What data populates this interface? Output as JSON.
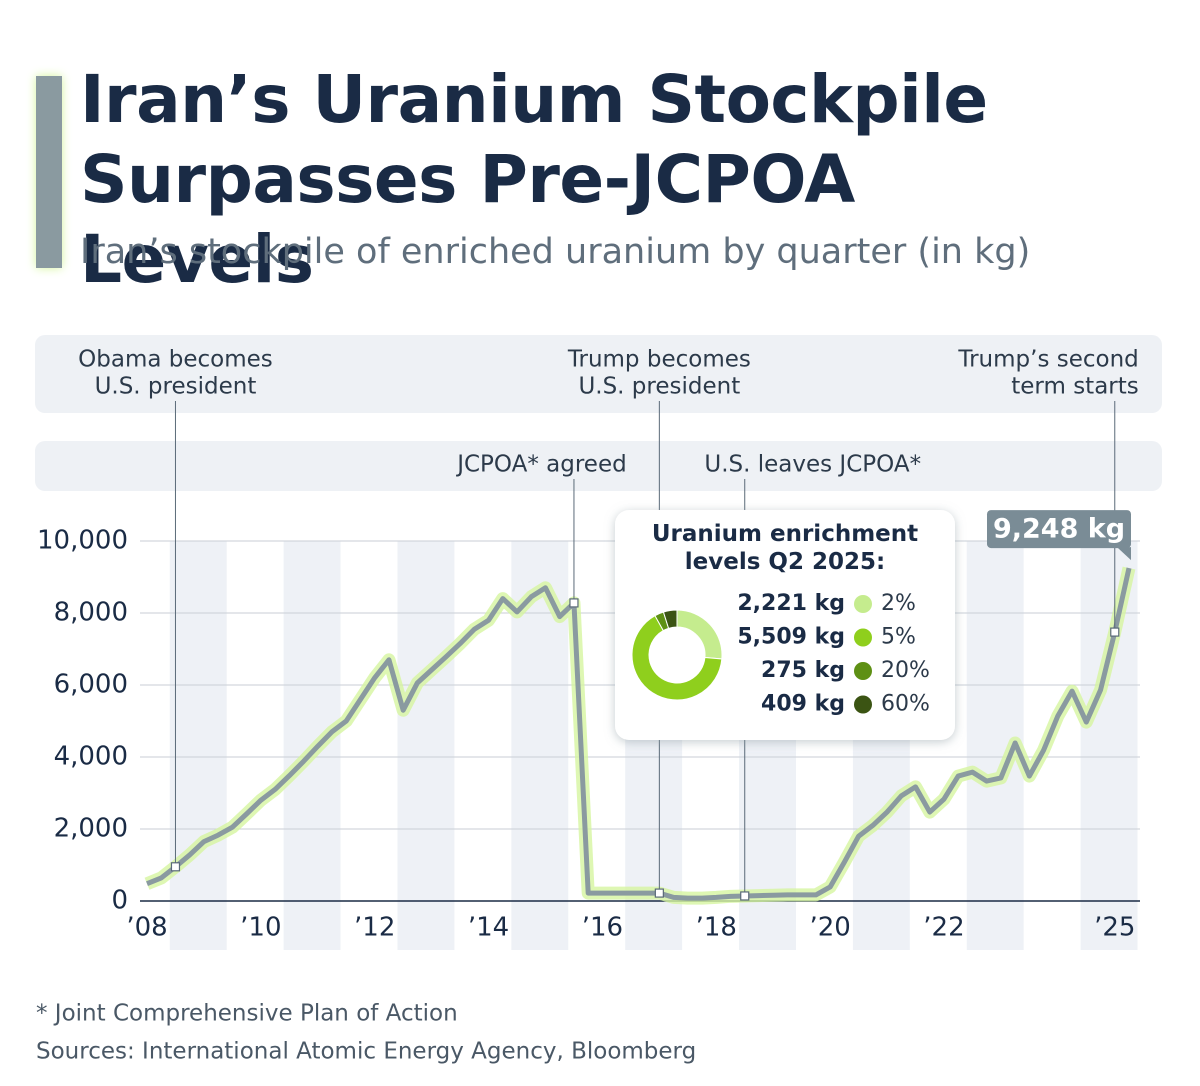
{
  "chart_data": [
    {
      "type": "line",
      "title": "Iran’s Uranium Stockpile Surpasses Pre-JCPOA Levels",
      "subtitle": "Iran’s stockpile of enriched uranium by quarter (in kg)",
      "x": [
        2008,
        2008.25,
        2008.5,
        2008.75,
        2009,
        2009.25,
        2009.5,
        2009.75,
        2010,
        2010.25,
        2010.5,
        2010.75,
        2011,
        2011.25,
        2011.5,
        2011.75,
        2012,
        2012.25,
        2012.5,
        2012.75,
        2013,
        2013.25,
        2013.5,
        2013.75,
        2014,
        2014.25,
        2014.5,
        2014.75,
        2015,
        2015.25,
        2015.5,
        2015.75,
        2016,
        2016.25,
        2016.5,
        2016.75,
        2017,
        2017.25,
        2017.5,
        2017.75,
        2018,
        2018.25,
        2018.5,
        2018.75,
        2019,
        2019.25,
        2019.5,
        2019.75,
        2020,
        2020.25,
        2020.5,
        2020.75,
        2021,
        2021.25,
        2021.5,
        2021.75,
        2022,
        2022.25,
        2022.5,
        2022.75,
        2023,
        2023.25,
        2023.5,
        2023.75,
        2024,
        2024.25,
        2024.5,
        2024.75,
        2025,
        2025.25
      ],
      "series": [
        {
          "name": "Stockpile",
          "color": "#8a9aa0",
          "values": [
            480,
            640,
            950,
            1280,
            1650,
            1830,
            2050,
            2420,
            2800,
            3100,
            3480,
            3880,
            4300,
            4700,
            5000,
            5600,
            6200,
            6700,
            5300,
            6060,
            6420,
            6780,
            7150,
            7550,
            7800,
            8400,
            8030,
            8450,
            8700,
            7900,
            8280,
            220,
            220,
            220,
            220,
            220,
            220,
            100,
            80,
            80,
            100,
            130,
            140,
            150,
            160,
            170,
            170,
            170,
            390,
            1080,
            1800,
            2100,
            2470,
            2920,
            3170,
            2470,
            2830,
            3470,
            3580,
            3330,
            3420,
            4390,
            3470,
            4190,
            5140,
            5830,
            4970,
            5860,
            7470,
            9248
          ],
          "value_labels": [
            null,
            null,
            null,
            null,
            null,
            null,
            null,
            null,
            null,
            null,
            null,
            null,
            null,
            null,
            null,
            null,
            null,
            null,
            null,
            null,
            null,
            null,
            null,
            null,
            null,
            null,
            null,
            null,
            null,
            null,
            null,
            null,
            null,
            null,
            null,
            null,
            null,
            null,
            null,
            null,
            null,
            null,
            null,
            null,
            null,
            null,
            null,
            null,
            null,
            null,
            null,
            null,
            null,
            null,
            null,
            null,
            null,
            null,
            null,
            null,
            null,
            null,
            null,
            null,
            null,
            null,
            null,
            null,
            null,
            "9,248 kg"
          ]
        }
      ],
      "xlim": [
        2008,
        2025.25
      ],
      "xticks": [
        {
          "value": 2008,
          "label": "’08"
        },
        {
          "value": 2010,
          "label": "’10"
        },
        {
          "value": 2012,
          "label": "’12"
        },
        {
          "value": 2014,
          "label": "’14"
        },
        {
          "value": 2016,
          "label": "’16"
        },
        {
          "value": 2018,
          "label": "’18"
        },
        {
          "value": 2020,
          "label": "’20"
        },
        {
          "value": 2022,
          "label": "’22"
        },
        {
          "value": 2025,
          "label": "’25"
        }
      ],
      "ylim": [
        0,
        10000
      ],
      "yticks": [
        0,
        {
          "value": 2000,
          "label": "2,000"
        },
        {
          "value": 4000,
          "label": "4,000"
        },
        {
          "value": 6000,
          "label": "6,000"
        },
        {
          "value": 8000,
          "label": "8,000"
        },
        {
          "value": 10000,
          "label": "10,000"
        }
      ],
      "grid": true,
      "top_annotations": [
        {
          "text": [
            "Obama becomes",
            "U.S. president"
          ],
          "x": 2008.5
        },
        {
          "text": [
            "Trump becomes",
            "U.S. president"
          ],
          "x": 2017
        },
        {
          "text": [
            "Trump’s second",
            "term starts"
          ],
          "x": 2025
        }
      ],
      "lower_annotations": [
        {
          "text": [
            "JCPOA* agreed"
          ],
          "x": 2015.5
        },
        {
          "text": [
            "U.S. leaves JCPOA*"
          ],
          "x": 2018.5
        }
      ],
      "footnotes": [
        "* Joint Comprehensive Plan of Action",
        "Sources: International Atomic Energy Agency, Bloomberg"
      ]
    },
    {
      "type": "pie",
      "title": "Uranium enrichment levels Q2 2025:",
      "categories": [
        "2%",
        "5%",
        "20%",
        "60%"
      ],
      "values": [
        2221,
        5509,
        275,
        409
      ],
      "value_labels": [
        "2,221 kg",
        "5,509 kg",
        "275 kg",
        "409 kg"
      ],
      "colors": [
        "#c5ec8e",
        "#8fcf1d",
        "#5e9014",
        "#3b5413"
      ]
    }
  ]
}
